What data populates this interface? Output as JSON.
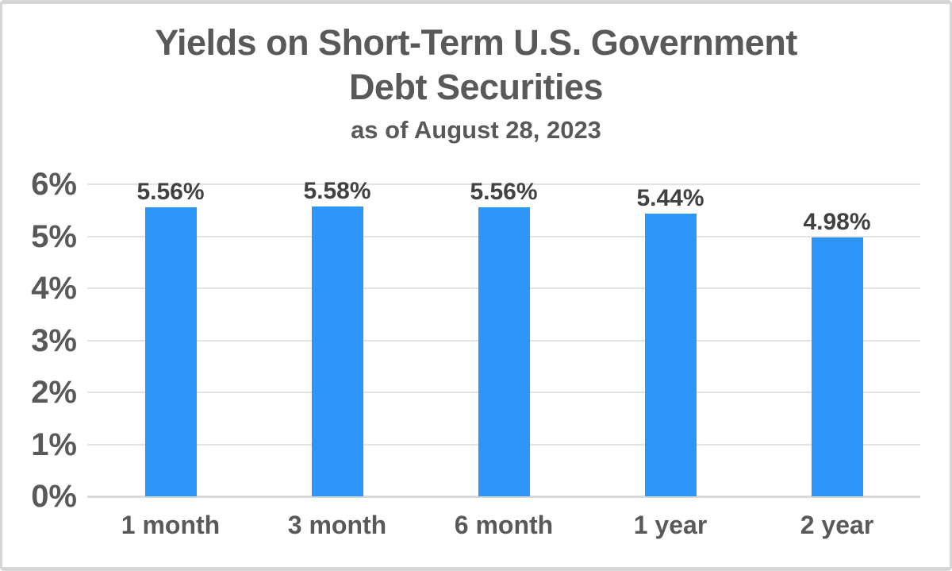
{
  "chart_data": {
    "type": "bar",
    "title_lines": [
      "Yields on Short-Term U.S. Government",
      "Debt Securities"
    ],
    "subtitle": "as of August 28, 2023",
    "categories": [
      "1 month",
      "3 month",
      "6 month",
      "1 year",
      "2 year"
    ],
    "values": [
      5.56,
      5.58,
      5.56,
      5.44,
      4.98
    ],
    "value_labels": [
      "5.56%",
      "5.58%",
      "5.56%",
      "5.44%",
      "4.98%"
    ],
    "xlabel": "",
    "ylabel": "",
    "ylim": [
      0,
      6
    ],
    "ytick_values": [
      6,
      5,
      4,
      3,
      2,
      1,
      0
    ],
    "ytick_labels": [
      "6%",
      "5%",
      "4%",
      "3%",
      "2%",
      "1%",
      "0%"
    ],
    "grid": true,
    "legend": "none",
    "colors": {
      "bar": "#2E95F8",
      "title_text": "#58595B",
      "axis_text": "#58595B",
      "value_label_text": "#414042",
      "gridline": "#E2E2E2",
      "axis_line": "#D9D9D9",
      "frame_border": "#D5D5D5"
    }
  }
}
